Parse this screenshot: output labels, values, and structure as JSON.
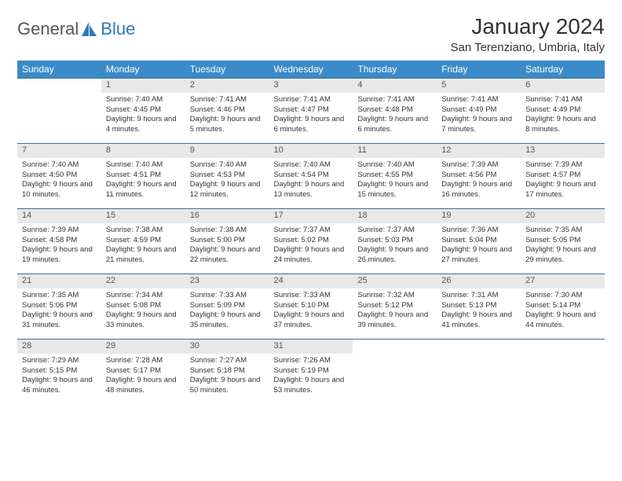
{
  "logo": {
    "word1": "General",
    "word2": "Blue"
  },
  "title": "January 2024",
  "location": "San Terenziano, Umbria, Italy",
  "colors": {
    "header_bg": "#3b8bc9",
    "header_text": "#ffffff",
    "daynum_bg": "#e8e8e8",
    "row_border": "#3b6fa0",
    "logo_blue": "#2a7ab8",
    "text": "#333333"
  },
  "weekdays": [
    "Sunday",
    "Monday",
    "Tuesday",
    "Wednesday",
    "Thursday",
    "Friday",
    "Saturday"
  ],
  "weeks": [
    {
      "nums": [
        "",
        "1",
        "2",
        "3",
        "4",
        "5",
        "6"
      ],
      "details": [
        "",
        "Sunrise: 7:40 AM\nSunset: 4:45 PM\nDaylight: 9 hours and 4 minutes.",
        "Sunrise: 7:41 AM\nSunset: 4:46 PM\nDaylight: 9 hours and 5 minutes.",
        "Sunrise: 7:41 AM\nSunset: 4:47 PM\nDaylight: 9 hours and 6 minutes.",
        "Sunrise: 7:41 AM\nSunset: 4:48 PM\nDaylight: 9 hours and 6 minutes.",
        "Sunrise: 7:41 AM\nSunset: 4:49 PM\nDaylight: 9 hours and 7 minutes.",
        "Sunrise: 7:41 AM\nSunset: 4:49 PM\nDaylight: 9 hours and 8 minutes."
      ]
    },
    {
      "nums": [
        "7",
        "8",
        "9",
        "10",
        "11",
        "12",
        "13"
      ],
      "details": [
        "Sunrise: 7:40 AM\nSunset: 4:50 PM\nDaylight: 9 hours and 10 minutes.",
        "Sunrise: 7:40 AM\nSunset: 4:51 PM\nDaylight: 9 hours and 11 minutes.",
        "Sunrise: 7:40 AM\nSunset: 4:53 PM\nDaylight: 9 hours and 12 minutes.",
        "Sunrise: 7:40 AM\nSunset: 4:54 PM\nDaylight: 9 hours and 13 minutes.",
        "Sunrise: 7:40 AM\nSunset: 4:55 PM\nDaylight: 9 hours and 15 minutes.",
        "Sunrise: 7:39 AM\nSunset: 4:56 PM\nDaylight: 9 hours and 16 minutes.",
        "Sunrise: 7:39 AM\nSunset: 4:57 PM\nDaylight: 9 hours and 17 minutes."
      ]
    },
    {
      "nums": [
        "14",
        "15",
        "16",
        "17",
        "18",
        "19",
        "20"
      ],
      "details": [
        "Sunrise: 7:39 AM\nSunset: 4:58 PM\nDaylight: 9 hours and 19 minutes.",
        "Sunrise: 7:38 AM\nSunset: 4:59 PM\nDaylight: 9 hours and 21 minutes.",
        "Sunrise: 7:38 AM\nSunset: 5:00 PM\nDaylight: 9 hours and 22 minutes.",
        "Sunrise: 7:37 AM\nSunset: 5:02 PM\nDaylight: 9 hours and 24 minutes.",
        "Sunrise: 7:37 AM\nSunset: 5:03 PM\nDaylight: 9 hours and 26 minutes.",
        "Sunrise: 7:36 AM\nSunset: 5:04 PM\nDaylight: 9 hours and 27 minutes.",
        "Sunrise: 7:35 AM\nSunset: 5:05 PM\nDaylight: 9 hours and 29 minutes."
      ]
    },
    {
      "nums": [
        "21",
        "22",
        "23",
        "24",
        "25",
        "26",
        "27"
      ],
      "details": [
        "Sunrise: 7:35 AM\nSunset: 5:06 PM\nDaylight: 9 hours and 31 minutes.",
        "Sunrise: 7:34 AM\nSunset: 5:08 PM\nDaylight: 9 hours and 33 minutes.",
        "Sunrise: 7:33 AM\nSunset: 5:09 PM\nDaylight: 9 hours and 35 minutes.",
        "Sunrise: 7:33 AM\nSunset: 5:10 PM\nDaylight: 9 hours and 37 minutes.",
        "Sunrise: 7:32 AM\nSunset: 5:12 PM\nDaylight: 9 hours and 39 minutes.",
        "Sunrise: 7:31 AM\nSunset: 5:13 PM\nDaylight: 9 hours and 41 minutes.",
        "Sunrise: 7:30 AM\nSunset: 5:14 PM\nDaylight: 9 hours and 44 minutes."
      ]
    },
    {
      "nums": [
        "28",
        "29",
        "30",
        "31",
        "",
        "",
        ""
      ],
      "details": [
        "Sunrise: 7:29 AM\nSunset: 5:15 PM\nDaylight: 9 hours and 46 minutes.",
        "Sunrise: 7:28 AM\nSunset: 5:17 PM\nDaylight: 9 hours and 48 minutes.",
        "Sunrise: 7:27 AM\nSunset: 5:18 PM\nDaylight: 9 hours and 50 minutes.",
        "Sunrise: 7:26 AM\nSunset: 5:19 PM\nDaylight: 9 hours and 53 minutes.",
        "",
        "",
        ""
      ]
    }
  ]
}
